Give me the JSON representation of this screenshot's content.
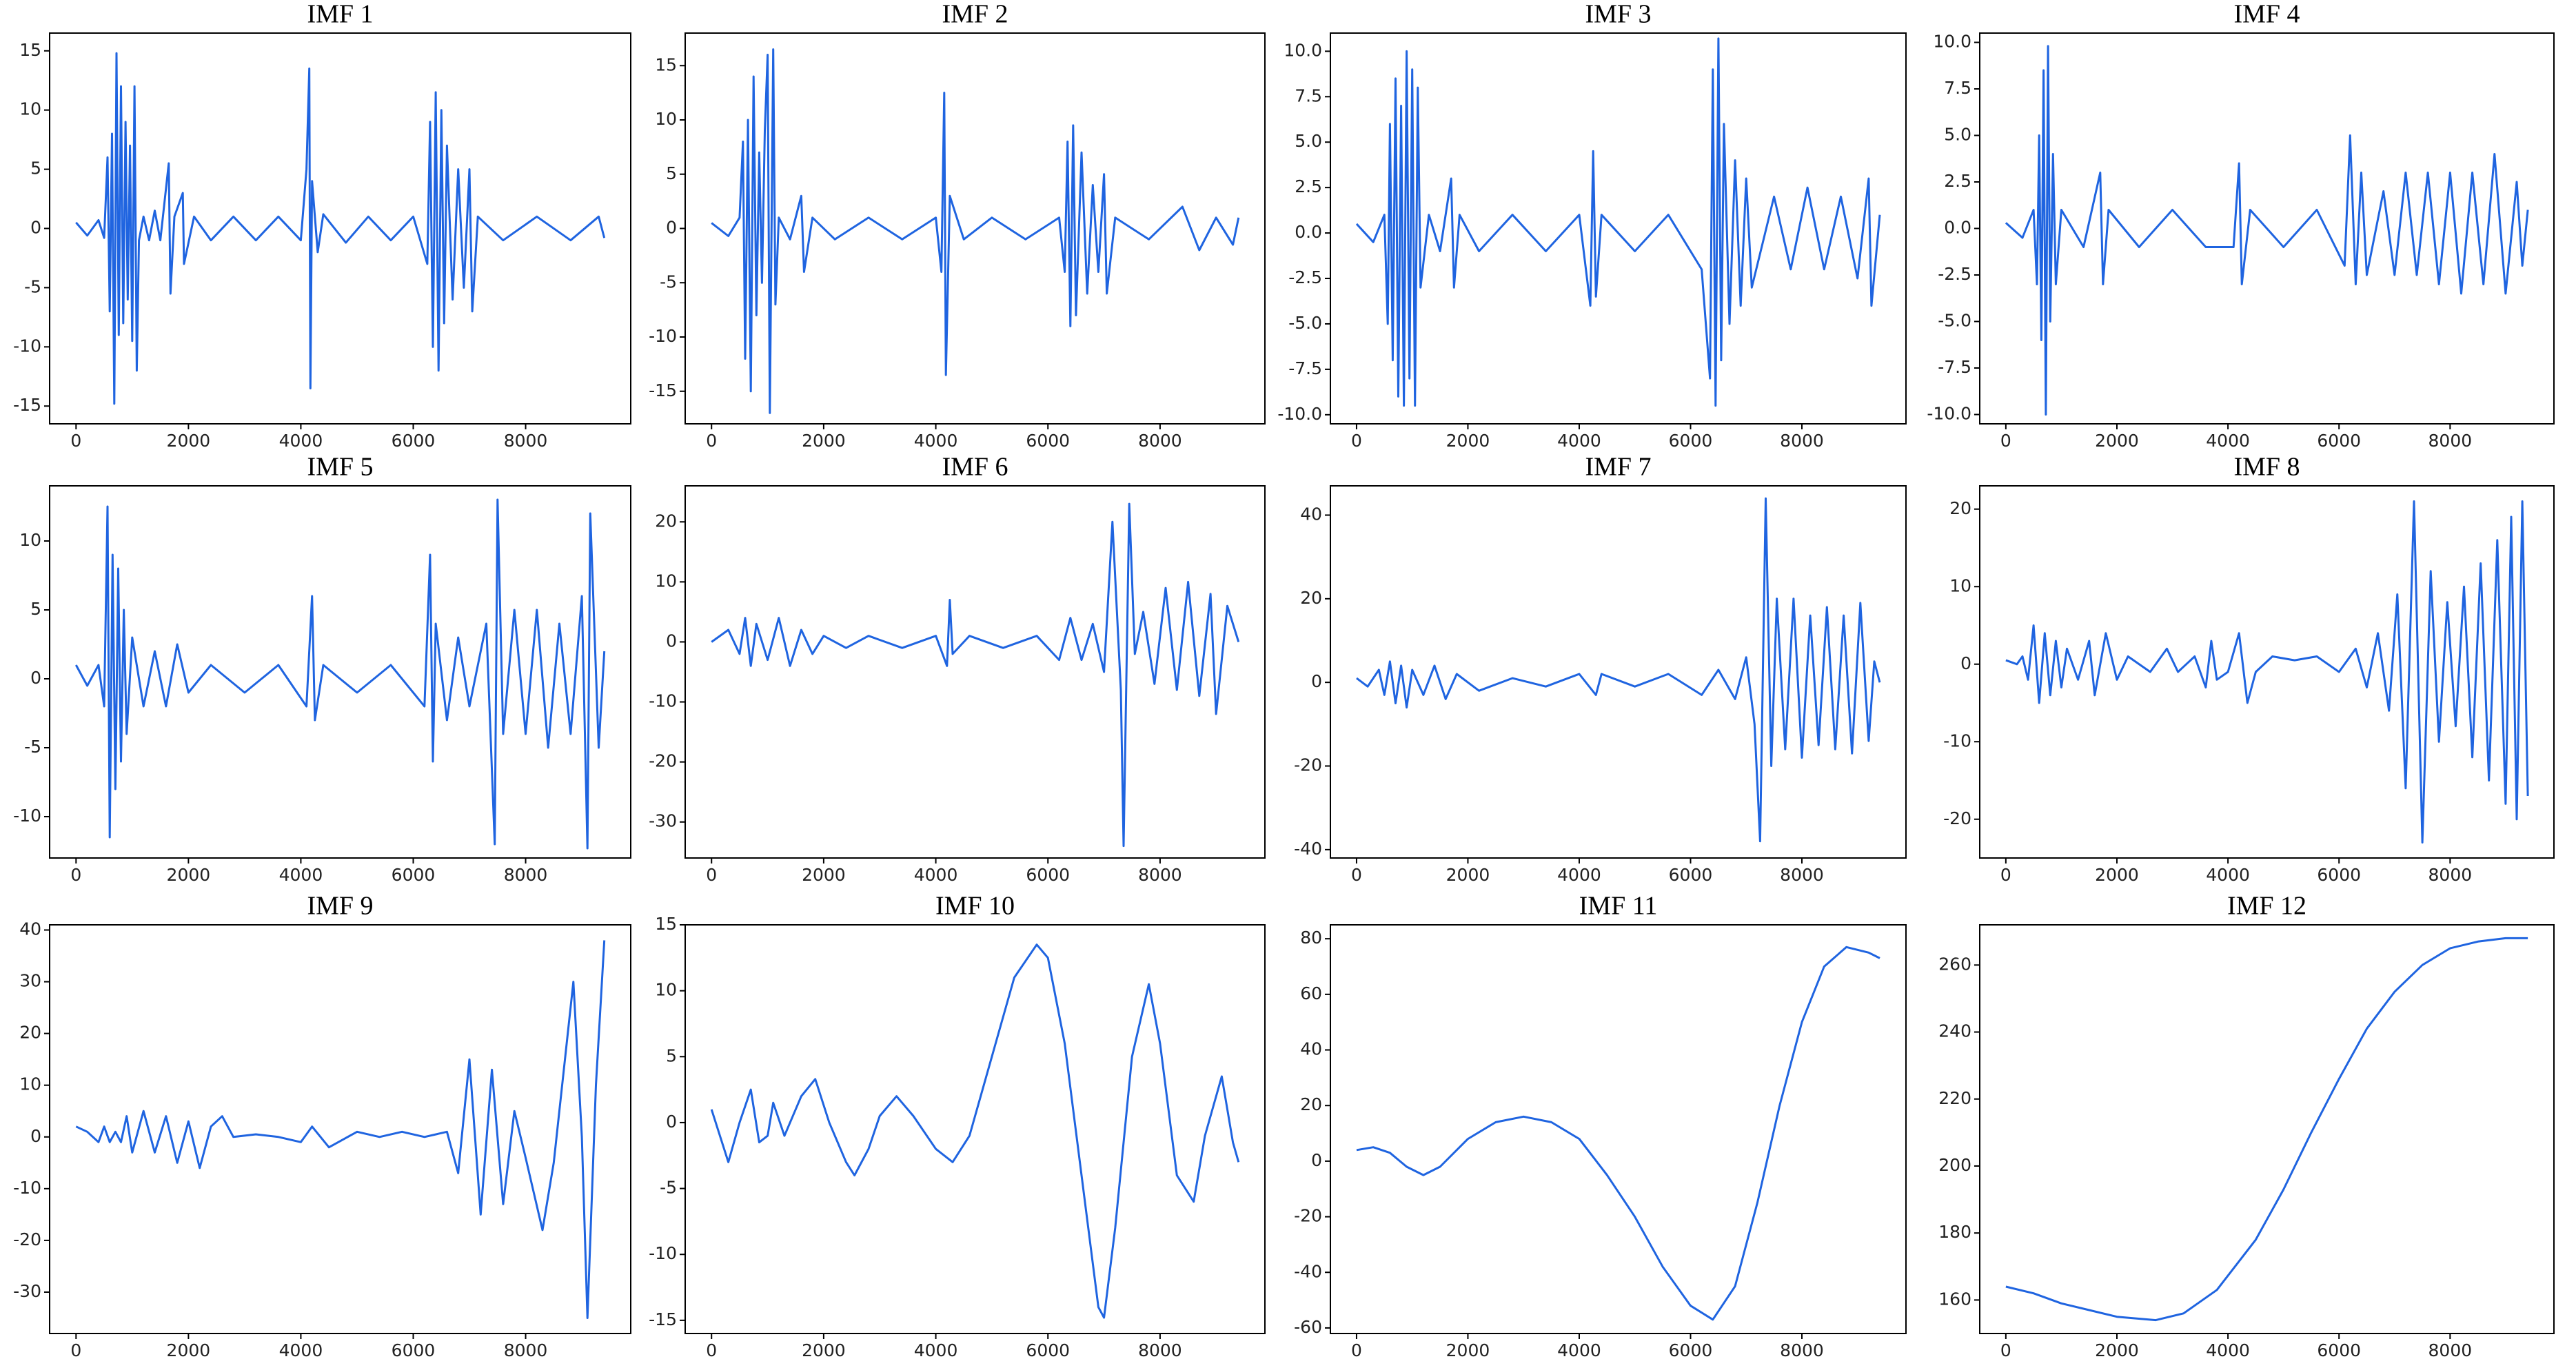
{
  "chart_data": [
    {
      "type": "line",
      "title": "IMF 1",
      "color": "#1f64e0",
      "xlim": [
        -470,
        9870
      ],
      "xticks": [
        0,
        2000,
        4000,
        6000,
        8000
      ],
      "ylim": [
        -16.5,
        16.5
      ],
      "yticks": [
        -15,
        -10,
        -5,
        0,
        5,
        10,
        15
      ],
      "x": [
        0,
        200,
        400,
        500,
        560,
        600,
        640,
        680,
        720,
        760,
        800,
        840,
        880,
        920,
        960,
        1000,
        1040,
        1080,
        1120,
        1200,
        1300,
        1400,
        1500,
        1650,
        1680,
        1750,
        1900,
        1920,
        2100,
        2400,
        2800,
        3200,
        3600,
        4000,
        4100,
        4150,
        4170,
        4200,
        4300,
        4400,
        4800,
        5200,
        5600,
        6000,
        6250,
        6300,
        6350,
        6400,
        6450,
        6500,
        6550,
        6600,
        6700,
        6800,
        6900,
        7000,
        7050,
        7150,
        7600,
        8200,
        8800,
        9300,
        9400
      ],
      "values": [
        0.5,
        -0.6,
        0.7,
        -0.8,
        6,
        -7,
        8,
        -14.8,
        14.8,
        -9,
        12,
        -8,
        9,
        -6,
        7,
        -9.5,
        12,
        -12,
        -1,
        1,
        -1,
        1.5,
        -1,
        5.5,
        -5.5,
        1,
        3,
        -3,
        1,
        -1,
        1,
        -1,
        1,
        -1,
        5,
        13.5,
        -13.5,
        4,
        -2,
        1.2,
        -1.2,
        1,
        -1,
        1,
        -3,
        9,
        -10,
        11.5,
        -12,
        10,
        -8,
        7,
        -6,
        5,
        -5,
        5,
        -7,
        1,
        -1,
        1,
        -1,
        1,
        -0.8
      ]
    },
    {
      "type": "line",
      "title": "IMF 2",
      "color": "#1f64e0",
      "xlim": [
        -470,
        9870
      ],
      "xticks": [
        0,
        2000,
        4000,
        6000,
        8000
      ],
      "ylim": [
        -18,
        18
      ],
      "yticks": [
        -15,
        -10,
        -5,
        0,
        5,
        10,
        15
      ],
      "x": [
        0,
        300,
        500,
        560,
        600,
        650,
        700,
        750,
        800,
        850,
        900,
        950,
        1000,
        1040,
        1100,
        1140,
        1200,
        1400,
        1600,
        1650,
        1800,
        2200,
        2800,
        3400,
        4000,
        4100,
        4150,
        4180,
        4250,
        4500,
        5000,
        5600,
        6200,
        6300,
        6350,
        6400,
        6450,
        6500,
        6600,
        6700,
        6800,
        6900,
        7000,
        7050,
        7200,
        7800,
        8400,
        8700,
        9000,
        9300,
        9400
      ],
      "values": [
        0.5,
        -0.7,
        1,
        8,
        -12,
        10,
        -15,
        14,
        -8,
        7,
        -5,
        9,
        16,
        -17,
        16.5,
        -7,
        1,
        -1,
        3,
        -4,
        1,
        -1,
        1,
        -1,
        1,
        -4,
        12.5,
        -13.5,
        3,
        -1,
        1,
        -1,
        1,
        -4,
        8,
        -9,
        9.5,
        -8,
        7,
        -6,
        4,
        -4,
        5,
        -6,
        1,
        -1,
        2,
        -2,
        1,
        -1.5,
        1
      ]
    },
    {
      "type": "line",
      "title": "IMF 3",
      "color": "#1f64e0",
      "xlim": [
        -470,
        9870
      ],
      "xticks": [
        0,
        2000,
        4000,
        6000,
        8000
      ],
      "ylim": [
        -10.5,
        11
      ],
      "yticks": [
        {
          "value": -10,
          "label": "-10.0"
        },
        -7.5,
        {
          "value": -5,
          "label": "-5.0"
        },
        -2.5,
        {
          "value": 0,
          "label": "0.0"
        },
        2.5,
        {
          "value": 5,
          "label": "5.0"
        },
        7.5,
        {
          "value": 10,
          "label": "10.0"
        }
      ],
      "x": [
        0,
        300,
        500,
        560,
        600,
        650,
        700,
        750,
        800,
        850,
        900,
        950,
        1000,
        1050,
        1100,
        1150,
        1300,
        1500,
        1700,
        1750,
        1850,
        2200,
        2800,
        3400,
        4000,
        4200,
        4250,
        4300,
        4400,
        5000,
        5600,
        6200,
        6350,
        6400,
        6450,
        6500,
        6550,
        6600,
        6700,
        6800,
        6900,
        7000,
        7100,
        7500,
        7800,
        8100,
        8400,
        8700,
        9000,
        9200,
        9250,
        9400
      ],
      "values": [
        0.5,
        -0.5,
        1,
        -5,
        6,
        -7,
        8.5,
        -9,
        7,
        -9.5,
        10,
        -8,
        9,
        -9.5,
        8,
        -3,
        1,
        -1,
        3,
        -3,
        1,
        -1,
        1,
        -1,
        1,
        -4,
        4.5,
        -3.5,
        1,
        -1,
        1,
        -2,
        -8,
        9,
        -9.5,
        10.7,
        -7,
        6,
        -5,
        4,
        -4,
        3,
        -3,
        2,
        -2,
        2.5,
        -2,
        2,
        -2.5,
        3,
        -4,
        1
      ]
    },
    {
      "type": "line",
      "title": "IMF 4",
      "color": "#1f64e0",
      "xlim": [
        -470,
        9870
      ],
      "xticks": [
        0,
        2000,
        4000,
        6000,
        8000
      ],
      "ylim": [
        -10.5,
        10.5
      ],
      "yticks": [
        {
          "value": -10,
          "label": "-10.0"
        },
        -7.5,
        {
          "value": -5,
          "label": "-5.0"
        },
        -2.5,
        {
          "value": 0,
          "label": "0.0"
        },
        2.5,
        {
          "value": 5,
          "label": "5.0"
        },
        7.5,
        {
          "value": 10,
          "label": "10.0"
        }
      ],
      "x": [
        0,
        300,
        500,
        560,
        600,
        640,
        680,
        720,
        760,
        800,
        850,
        900,
        1000,
        1400,
        1700,
        1750,
        1850,
        2400,
        3000,
        3600,
        4100,
        4200,
        4250,
        4400,
        5000,
        5600,
        6100,
        6200,
        6300,
        6400,
        6500,
        6800,
        7000,
        7200,
        7400,
        7600,
        7800,
        8000,
        8200,
        8400,
        8600,
        8800,
        9000,
        9200,
        9300,
        9400
      ],
      "values": [
        0.3,
        -0.5,
        1,
        -3,
        5,
        -6,
        8.5,
        -10,
        9.8,
        -5,
        4,
        -3,
        1,
        -1,
        3,
        -3,
        1,
        -1,
        1,
        -1,
        -1,
        3.5,
        -3,
        1,
        -1,
        1,
        -2,
        5,
        -3,
        3,
        -2.5,
        2,
        -2.5,
        3,
        -2.5,
        3,
        -3,
        3,
        -3.5,
        3,
        -3,
        4,
        -3.5,
        2.5,
        -2,
        1
      ]
    },
    {
      "type": "line",
      "title": "IMF 5",
      "color": "#1f64e0",
      "xlim": [
        -470,
        9870
      ],
      "xticks": [
        0,
        2000,
        4000,
        6000,
        8000
      ],
      "ylim": [
        -13,
        14
      ],
      "yticks": [
        -10,
        -5,
        0,
        5,
        10
      ],
      "x": [
        0,
        200,
        400,
        500,
        560,
        600,
        650,
        700,
        750,
        800,
        850,
        900,
        1000,
        1200,
        1400,
        1600,
        1800,
        2000,
        2400,
        3000,
        3600,
        4100,
        4200,
        4250,
        4400,
        5000,
        5600,
        6200,
        6300,
        6350,
        6400,
        6600,
        6800,
        7000,
        7300,
        7450,
        7500,
        7600,
        7800,
        8000,
        8200,
        8400,
        8600,
        8800,
        9000,
        9100,
        9150,
        9300,
        9400
      ],
      "values": [
        1,
        -0.5,
        1,
        -2,
        12.5,
        -11.5,
        9,
        -8,
        8,
        -6,
        5,
        -4,
        3,
        -2,
        2,
        -2,
        2.5,
        -1,
        1,
        -1,
        1,
        -2,
        6,
        -3,
        1,
        -1,
        1,
        -2,
        9,
        -6,
        4,
        -3,
        3,
        -2,
        4,
        -12,
        13,
        -4,
        5,
        -4,
        5,
        -5,
        4,
        -4,
        6,
        -12.3,
        12,
        -5,
        2
      ]
    },
    {
      "type": "line",
      "title": "IMF 6",
      "color": "#1f64e0",
      "xlim": [
        -470,
        9870
      ],
      "xticks": [
        0,
        2000,
        4000,
        6000,
        8000
      ],
      "ylim": [
        -36,
        26
      ],
      "yticks": [
        -30,
        -20,
        -10,
        0,
        10,
        20
      ],
      "x": [
        0,
        300,
        500,
        600,
        700,
        800,
        1000,
        1200,
        1400,
        1600,
        1800,
        2000,
        2400,
        2800,
        3400,
        4000,
        4200,
        4250,
        4300,
        4600,
        5200,
        5800,
        6200,
        6400,
        6600,
        6800,
        7000,
        7150,
        7300,
        7350,
        7450,
        7550,
        7700,
        7900,
        8100,
        8300,
        8500,
        8700,
        8900,
        9000,
        9200,
        9400
      ],
      "values": [
        0,
        2,
        -2,
        4,
        -4,
        3,
        -3,
        4,
        -4,
        2,
        -2,
        1,
        -1,
        1,
        -1,
        1,
        -4,
        7,
        -2,
        1,
        -1,
        1,
        -3,
        4,
        -3,
        3,
        -5,
        20,
        -8,
        -34,
        23,
        -2,
        5,
        -7,
        9,
        -8,
        10,
        -9,
        8,
        -12,
        6,
        0
      ]
    },
    {
      "type": "line",
      "title": "IMF 7",
      "color": "#1f64e0",
      "xlim": [
        -470,
        9870
      ],
      "xticks": [
        0,
        2000,
        4000,
        6000,
        8000
      ],
      "ylim": [
        -42,
        47
      ],
      "yticks": [
        -40,
        -20,
        0,
        20,
        40
      ],
      "x": [
        0,
        200,
        400,
        500,
        600,
        700,
        800,
        900,
        1000,
        1200,
        1400,
        1600,
        1800,
        2200,
        2800,
        3400,
        4000,
        4300,
        4400,
        5000,
        5600,
        6200,
        6500,
        6800,
        7000,
        7150,
        7250,
        7350,
        7450,
        7550,
        7700,
        7850,
        8000,
        8150,
        8300,
        8450,
        8600,
        8750,
        8900,
        9050,
        9200,
        9300,
        9400
      ],
      "values": [
        1,
        -1,
        3,
        -3,
        5,
        -5,
        4,
        -6,
        3,
        -3,
        4,
        -4,
        2,
        -2,
        1,
        -1,
        2,
        -3,
        2,
        -1,
        2,
        -3,
        3,
        -4,
        6,
        -10,
        -38,
        44,
        -20,
        20,
        -16,
        20,
        -18,
        16,
        -15,
        18,
        -16,
        16,
        -17,
        19,
        -14,
        5,
        0
      ]
    },
    {
      "type": "line",
      "title": "IMF 8",
      "color": "#1f64e0",
      "xlim": [
        -470,
        9870
      ],
      "xticks": [
        0,
        2000,
        4000,
        6000,
        8000
      ],
      "ylim": [
        -25,
        23
      ],
      "yticks": [
        -20,
        -10,
        0,
        10,
        20
      ],
      "x": [
        0,
        200,
        300,
        400,
        500,
        600,
        700,
        800,
        900,
        1000,
        1100,
        1300,
        1500,
        1600,
        1800,
        2000,
        2200,
        2600,
        2900,
        3100,
        3400,
        3600,
        3700,
        3800,
        4000,
        4200,
        4350,
        4500,
        4800,
        5200,
        5600,
        6000,
        6300,
        6500,
        6700,
        6900,
        7050,
        7200,
        7350,
        7500,
        7650,
        7800,
        7950,
        8100,
        8250,
        8400,
        8550,
        8700,
        8850,
        9000,
        9100,
        9200,
        9300,
        9400
      ],
      "values": [
        0.5,
        0,
        1,
        -2,
        5,
        -5,
        4,
        -4,
        3,
        -3,
        2,
        -2,
        3,
        -4,
        4,
        -2,
        1,
        -1,
        2,
        -1,
        1,
        -3,
        3,
        -2,
        -1,
        4,
        -5,
        -1,
        1,
        0.5,
        1,
        -1,
        2,
        -3,
        4,
        -6,
        9,
        -16,
        21,
        -23,
        12,
        -10,
        8,
        -8,
        10,
        -12,
        13,
        -15,
        16,
        -18,
        19,
        -20,
        21,
        -17
      ]
    },
    {
      "type": "line",
      "title": "IMF 9",
      "color": "#1f64e0",
      "xlim": [
        -470,
        9870
      ],
      "xticks": [
        0,
        2000,
        4000,
        6000,
        8000
      ],
      "ylim": [
        -38,
        41
      ],
      "yticks": [
        -30,
        -20,
        -10,
        0,
        10,
        20,
        30,
        40
      ],
      "x": [
        0,
        200,
        400,
        500,
        600,
        700,
        800,
        900,
        1000,
        1200,
        1400,
        1600,
        1800,
        2000,
        2200,
        2400,
        2600,
        2800,
        3200,
        3600,
        4000,
        4200,
        4500,
        5000,
        5400,
        5800,
        6200,
        6600,
        6800,
        7000,
        7200,
        7400,
        7600,
        7800,
        8000,
        8300,
        8500,
        8850,
        9000,
        9100,
        9250,
        9400
      ],
      "values": [
        2,
        1,
        -1,
        2,
        -1,
        1,
        -1,
        4,
        -3,
        5,
        -3,
        4,
        -5,
        3,
        -6,
        2,
        4,
        0,
        0.5,
        0,
        -1,
        2,
        -2,
        1,
        0,
        1,
        0,
        1,
        -7,
        15,
        -15,
        13,
        -13,
        5,
        -4,
        -18,
        -5,
        30,
        0,
        -35,
        10,
        38
      ]
    },
    {
      "type": "line",
      "title": "IMF 10",
      "color": "#1f64e0",
      "xlim": [
        -470,
        9870
      ],
      "xticks": [
        0,
        2000,
        4000,
        6000,
        8000
      ],
      "ylim": [
        -16,
        15
      ],
      "yticks": [
        -15,
        -10,
        -5,
        0,
        5,
        10,
        15
      ],
      "x": [
        0,
        150,
        300,
        500,
        700,
        850,
        1000,
        1100,
        1300,
        1600,
        1850,
        2100,
        2400,
        2550,
        2800,
        3000,
        3300,
        3600,
        4000,
        4300,
        4600,
        5000,
        5400,
        5800,
        6000,
        6300,
        6600,
        6900,
        7000,
        7200,
        7500,
        7800,
        8000,
        8300,
        8600,
        8800,
        9100,
        9300,
        9400
      ],
      "values": [
        1,
        -1,
        -3,
        0,
        2.5,
        -1.5,
        -1,
        1.5,
        -1,
        2,
        3.3,
        0,
        -3,
        -4,
        -2,
        0.5,
        2,
        0.5,
        -2,
        -3,
        -1,
        5,
        11,
        13.5,
        12.5,
        6,
        -4,
        -14,
        -14.8,
        -8,
        5,
        10.5,
        6,
        -4,
        -6,
        -1,
        3.5,
        -1.5,
        -3
      ]
    },
    {
      "type": "line",
      "title": "IMF 11",
      "color": "#1f64e0",
      "xlim": [
        -470,
        9870
      ],
      "xticks": [
        0,
        2000,
        4000,
        6000,
        8000
      ],
      "ylim": [
        -62,
        85
      ],
      "yticks": [
        -60,
        -40,
        -20,
        0,
        20,
        40,
        60,
        80
      ],
      "x": [
        0,
        300,
        600,
        900,
        1200,
        1500,
        2000,
        2500,
        3000,
        3500,
        4000,
        4500,
        5000,
        5500,
        6000,
        6400,
        6800,
        7200,
        7600,
        8000,
        8400,
        8800,
        9200,
        9400
      ],
      "values": [
        4,
        5,
        3,
        -2,
        -5,
        -2,
        8,
        14,
        16,
        14,
        8,
        -5,
        -20,
        -38,
        -52,
        -57,
        -45,
        -15,
        20,
        50,
        70,
        77,
        75,
        73
      ]
    },
    {
      "type": "line",
      "title": "IMF 12",
      "color": "#1f64e0",
      "xlim": [
        -470,
        9870
      ],
      "xticks": [
        0,
        2000,
        4000,
        6000,
        8000
      ],
      "ylim": [
        150,
        272
      ],
      "yticks": [
        160,
        180,
        200,
        220,
        240,
        260
      ],
      "x": [
        0,
        500,
        1000,
        1500,
        2000,
        2700,
        3200,
        3800,
        4500,
        5000,
        5500,
        6000,
        6500,
        7000,
        7500,
        8000,
        8500,
        9000,
        9400
      ],
      "values": [
        164,
        162,
        159,
        157,
        155,
        154,
        156,
        163,
        178,
        193,
        210,
        226,
        241,
        252,
        260,
        265,
        267,
        268,
        268
      ]
    }
  ]
}
